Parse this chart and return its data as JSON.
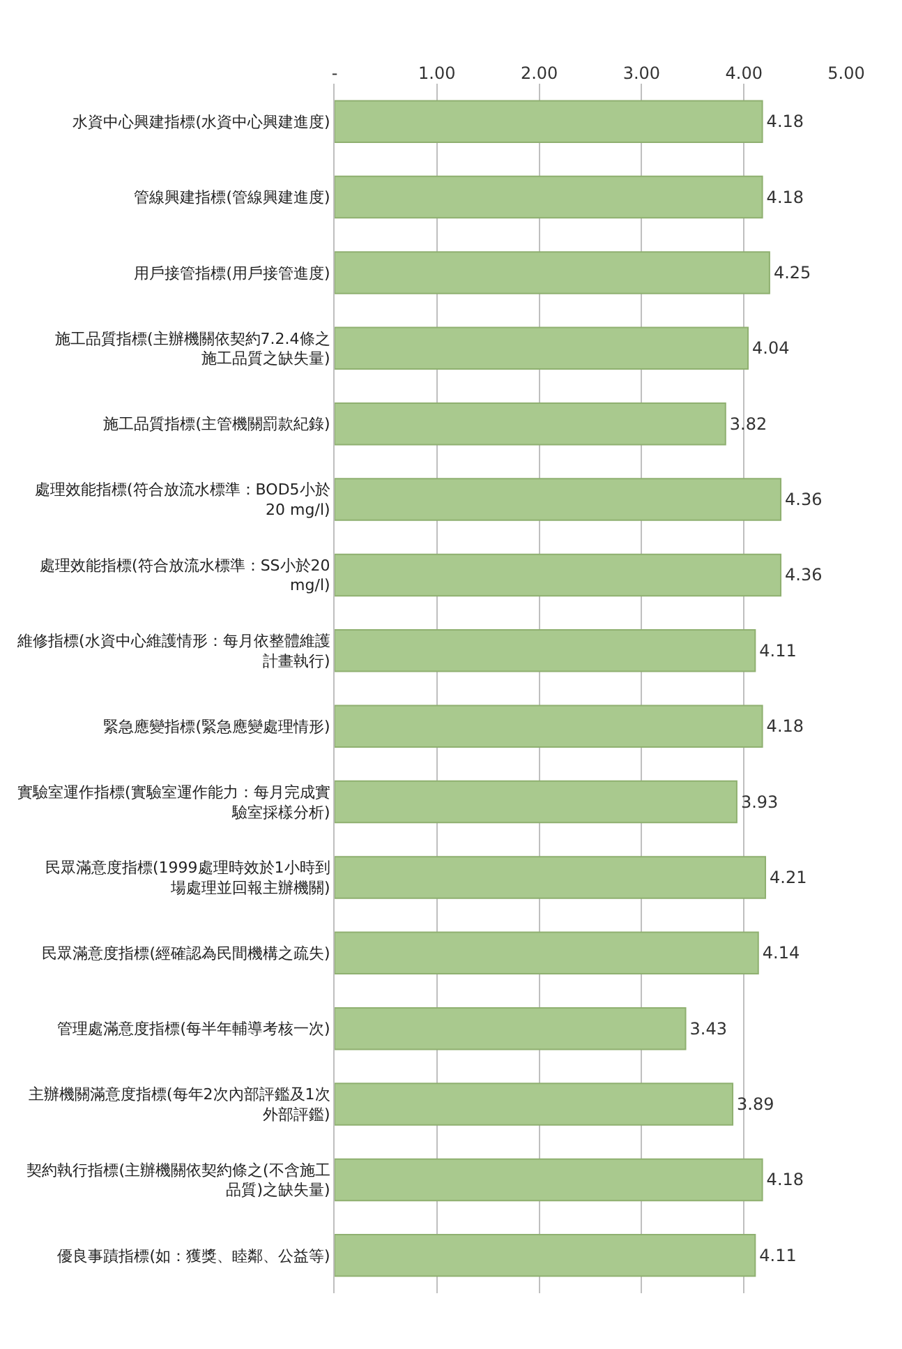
{
  "chart_data": {
    "type": "bar",
    "orientation": "horizontal",
    "categories": [
      "水資中心興建指標(水資中心興建進度)",
      "管線興建指標(管線興建進度)",
      "用戶接管指標(用戶接管進度)",
      "施工品質指標(主辦機關依契約7.2.4條之施工品質之缺失量)",
      "施工品質指標(主管機關罰款紀錄)",
      "處理效能指標(符合放流水標準：BOD5小於20 mg/l)",
      "處理效能指標(符合放流水標準：SS小於20 mg/l)",
      "維修指標(水資中心維護情形：每月依整體維護計畫執行)",
      "緊急應變指標(緊急應變處理情形)",
      "實驗室運作指標(實驗室運作能力：每月完成實驗室採樣分析)",
      "民眾滿意度指標(1999處理時效於1小時到場處理並回報主辦機關)",
      "民眾滿意度指標(經確認為民間機構之疏失)",
      "管理處滿意度指標(每半年輔導考核一次)",
      "主辦機關滿意度指標(每年2次內部評鑑及1次外部評鑑)",
      "契約執行指標(主辦機關依契約條之(不含施工品質)之缺失量)",
      "優良事蹟指標(如：獲獎、睦鄰、公益等)"
    ],
    "values": [
      4.18,
      4.18,
      4.25,
      4.04,
      3.82,
      4.36,
      4.36,
      4.11,
      4.18,
      3.93,
      4.21,
      4.14,
      3.43,
      3.89,
      4.18,
      4.11
    ],
    "value_labels": [
      "4.18",
      "4.18",
      "4.25",
      "4.04",
      "3.82",
      "4.36",
      "4.36",
      "4.11",
      "4.18",
      "3.93",
      "4.21",
      "4.14",
      "3.43",
      "3.89",
      "4.18",
      "4.11"
    ],
    "color": "#a9c98e",
    "xlim": [
      0,
      5
    ],
    "xticks": [
      {
        "value": 0,
        "label": "-"
      },
      {
        "value": 1,
        "label": "1.00"
      },
      {
        "value": 2,
        "label": "2.00"
      },
      {
        "value": 3,
        "label": "3.00"
      },
      {
        "value": 4,
        "label": "4.00"
      },
      {
        "value": 5,
        "label": "5.00"
      }
    ],
    "grid": "x",
    "legend": false
  }
}
